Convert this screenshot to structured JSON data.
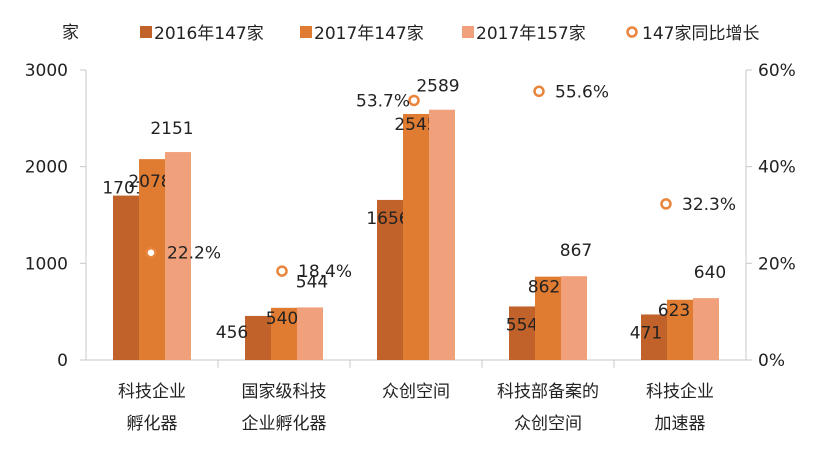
{
  "chart_data": {
    "type": "bar",
    "y_unit_label": "家",
    "categories": [
      [
        "科技企业",
        "孵化器"
      ],
      [
        "国家级科技",
        "企业孵化器"
      ],
      [
        "众创空间"
      ],
      [
        "科技部备案的",
        "众创空间"
      ],
      [
        "科技企业",
        "加速器"
      ]
    ],
    "series": [
      {
        "name": "2016年147家",
        "color": "#c0622a",
        "values": [
          1701,
          456,
          1656,
          554,
          471
        ]
      },
      {
        "name": "2017年147家",
        "color": "#e07b32",
        "values": [
          2078,
          540,
          2545,
          862,
          623
        ]
      },
      {
        "name": "2017年157家",
        "color": "#f0a07a",
        "values": [
          2151,
          544,
          2589,
          867,
          640
        ]
      }
    ],
    "growth_series": {
      "name": "147家同比增长",
      "color": "#e8843c",
      "values": [
        22.2,
        18.4,
        53.7,
        55.6,
        32.3
      ],
      "labels": [
        "22.2%",
        "18.4%",
        "53.7%",
        "55.6%",
        "32.3%"
      ]
    },
    "ylim": [
      0,
      3000
    ],
    "yticks": [
      "0",
      "1000",
      "2000",
      "3000"
    ],
    "y2lim": [
      0,
      60
    ],
    "y2ticks": [
      "0%",
      "20%",
      "40%",
      "60%"
    ],
    "legend_position": "top",
    "grid": false
  }
}
